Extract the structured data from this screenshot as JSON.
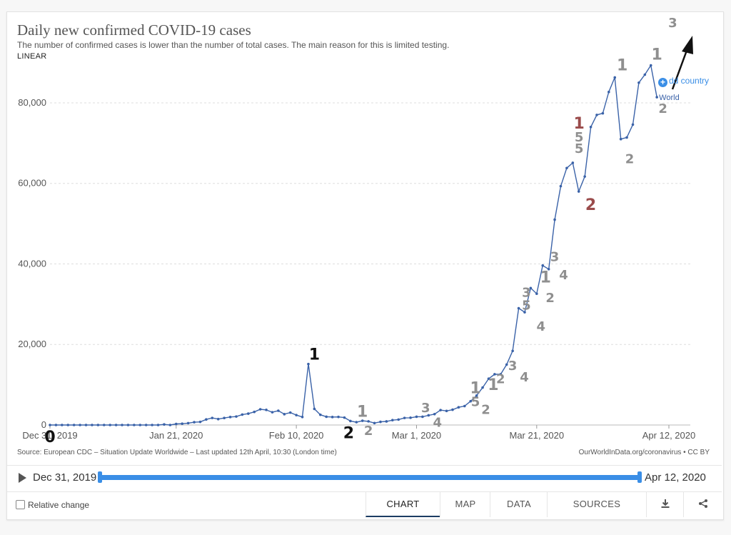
{
  "header": {
    "title": "Daily new confirmed COVID-19 cases",
    "subtitle": "The number of confirmed cases is lower than the number of total cases. The main reason for this is limited testing.",
    "scale": "LINEAR"
  },
  "add_country": {
    "label": "Add country",
    "visible_label": "dd country"
  },
  "footer_text": {
    "source": "Source: European CDC – Situation Update Worldwide – Last updated 12th April, 10:30 (London time)",
    "credit": "OurWorldInData.org/coronavirus • CC BY"
  },
  "timeline": {
    "start": "Dec 31, 2019",
    "end": "Apr 12, 2020"
  },
  "controls": {
    "relative_change": "Relative change",
    "tabs": [
      "CHART",
      "MAP",
      "DATA",
      "SOURCES"
    ],
    "active_tab": "CHART",
    "download_icon": "download-icon",
    "share_icon": "share-icon"
  },
  "colors": {
    "line": "#3a62a8",
    "accent": "#3a8ee6",
    "annotation_gray": "#8f8f8f",
    "annotation_red": "#9a4b4b",
    "annotation_black": "#111111"
  },
  "chart_data": {
    "type": "line",
    "x_start": "2019-12-31",
    "x_end": "2020-04-12",
    "xticks": [
      "Dec 31, 2019",
      "Jan 21, 2020",
      "Feb 10, 2020",
      "Mar 1, 2020",
      "Mar 21, 2020",
      "Apr 12, 2020"
    ],
    "yticks": [
      "0",
      "20,000",
      "40,000",
      "60,000",
      "80,000"
    ],
    "ylim": [
      0,
      90000
    ],
    "grid": "horizontal dashed",
    "series": [
      {
        "name": "World",
        "values": [
          0,
          0,
          0,
          0,
          0,
          0,
          0,
          0,
          0,
          0,
          0,
          0,
          0,
          0,
          0,
          0,
          0,
          0,
          0,
          140,
          0,
          260,
          320,
          460,
          690,
          770,
          1380,
          1750,
          1470,
          1740,
          1980,
          2100,
          2590,
          2820,
          3240,
          3900,
          3750,
          3170,
          3540,
          2690,
          3080,
          2460,
          1990,
          15140,
          4000,
          2540,
          2050,
          1980,
          2010,
          1840,
          980,
          700,
          1050,
          910,
          480,
          780,
          890,
          1200,
          1350,
          1750,
          1800,
          2050,
          2050,
          2400,
          2700,
          3700,
          3500,
          3800,
          4400,
          4700,
          5900,
          7300,
          9300,
          11500,
          12600,
          12600,
          15000,
          18400,
          29000,
          28000,
          34000,
          32600,
          39600,
          38700,
          51000,
          59300,
          63800,
          65100,
          58000,
          61700,
          74000,
          77000,
          77400,
          82700,
          86300,
          71000,
          71400,
          74600,
          85000,
          87000,
          89300,
          81400
        ]
      }
    ],
    "annotations": [
      {
        "x": "2019-12-31",
        "y": 0,
        "text": "0",
        "color": "black"
      },
      {
        "x": "2020-02-13",
        "y": 15140,
        "text": "1",
        "color": "black"
      },
      {
        "x": "2020-02-18",
        "y": 2010,
        "text": "2",
        "color": "black"
      },
      {
        "x": "2020-02-21",
        "y": 980,
        "text": "1",
        "color": "gray"
      },
      {
        "x": "2020-02-22",
        "y": 700,
        "text": "2",
        "color": "gray"
      },
      {
        "x": "2020-03-03",
        "y": 1800,
        "text": "3",
        "color": "gray"
      },
      {
        "x": "2020-03-04",
        "y": 2050,
        "text": "4",
        "color": "gray"
      },
      {
        "x": "2020-03-12",
        "y": 4700,
        "text": "1",
        "color": "gray"
      },
      {
        "x": "2020-03-12",
        "y": 4700,
        "text": "5",
        "color": "gray"
      },
      {
        "x": "2020-03-13",
        "y": 5900,
        "text": "2",
        "color": "gray"
      },
      {
        "x": "2020-03-14",
        "y": 7300,
        "text": "1",
        "color": "gray"
      },
      {
        "x": "2020-03-15",
        "y": 9300,
        "text": "2",
        "color": "gray"
      },
      {
        "x": "2020-03-17",
        "y": 12600,
        "text": "3",
        "color": "gray"
      },
      {
        "x": "2020-03-18",
        "y": 12600,
        "text": "4",
        "color": "gray"
      },
      {
        "x": "2020-03-20",
        "y": 29000,
        "text": "3",
        "color": "gray"
      },
      {
        "x": "2020-03-20",
        "y": 29000,
        "text": "5",
        "color": "gray"
      },
      {
        "x": "2020-03-21",
        "y": 28000,
        "text": "4",
        "color": "gray"
      },
      {
        "x": "2020-03-22",
        "y": 34000,
        "text": "1",
        "color": "gray"
      },
      {
        "x": "2020-03-23",
        "y": 32600,
        "text": "2",
        "color": "gray"
      },
      {
        "x": "2020-03-24",
        "y": 39600,
        "text": "3",
        "color": "gray"
      },
      {
        "x": "2020-03-25",
        "y": 38700,
        "text": "4",
        "color": "gray"
      },
      {
        "x": "2020-03-29",
        "y": 65100,
        "text": "1",
        "color": "red"
      },
      {
        "x": "2020-03-29",
        "y": 65100,
        "text": "5",
        "color": "gray"
      },
      {
        "x": "2020-03-29",
        "y": 65100,
        "text": "5",
        "color": "gray"
      },
      {
        "x": "2020-03-30",
        "y": 58000,
        "text": "2",
        "color": "red"
      },
      {
        "x": "2020-04-04",
        "y": 86300,
        "text": "1",
        "color": "gray"
      },
      {
        "x": "2020-04-05",
        "y": 71000,
        "text": "2",
        "color": "gray"
      },
      {
        "x": "2020-04-10",
        "y": 89300,
        "text": "1",
        "color": "gray"
      },
      {
        "x": "2020-04-11",
        "y": 81400,
        "text": "2",
        "color": "gray"
      },
      {
        "x": "2020-04-13",
        "y": 100000,
        "text": "3",
        "color": "gray"
      }
    ],
    "series_label": "World"
  }
}
